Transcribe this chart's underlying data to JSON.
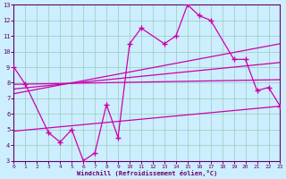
{
  "xlabel": "Windchill (Refroidissement éolien,°C)",
  "bg_color": "#cceeff",
  "line_color": "#cc00aa",
  "grid_color": "#99ccbb",
  "xlim": [
    0,
    23
  ],
  "ylim": [
    3,
    13
  ],
  "xticks": [
    0,
    1,
    2,
    3,
    4,
    5,
    6,
    7,
    8,
    9,
    10,
    11,
    12,
    13,
    14,
    15,
    16,
    17,
    18,
    19,
    20,
    21,
    22,
    23
  ],
  "yticks": [
    3,
    4,
    5,
    6,
    7,
    8,
    9,
    10,
    11,
    12,
    13
  ],
  "jagged_x": [
    0,
    1,
    3,
    4,
    5,
    6,
    7,
    8,
    9,
    10,
    11,
    13,
    14,
    15,
    16,
    17,
    19,
    20,
    21,
    22,
    23
  ],
  "jagged_y": [
    9.0,
    7.9,
    4.8,
    4.2,
    5.0,
    3.0,
    3.5,
    6.6,
    4.5,
    10.5,
    11.5,
    10.5,
    11.0,
    13.0,
    12.3,
    12.0,
    9.5,
    9.5,
    7.5,
    7.7,
    6.5
  ],
  "smooth_lines": [
    {
      "x": [
        0,
        23
      ],
      "y": [
        7.9,
        8.2
      ]
    },
    {
      "x": [
        0,
        23
      ],
      "y": [
        7.6,
        9.3
      ]
    },
    {
      "x": [
        0,
        23
      ],
      "y": [
        7.3,
        10.5
      ]
    },
    {
      "x": [
        0,
        23
      ],
      "y": [
        4.9,
        6.5
      ]
    }
  ]
}
